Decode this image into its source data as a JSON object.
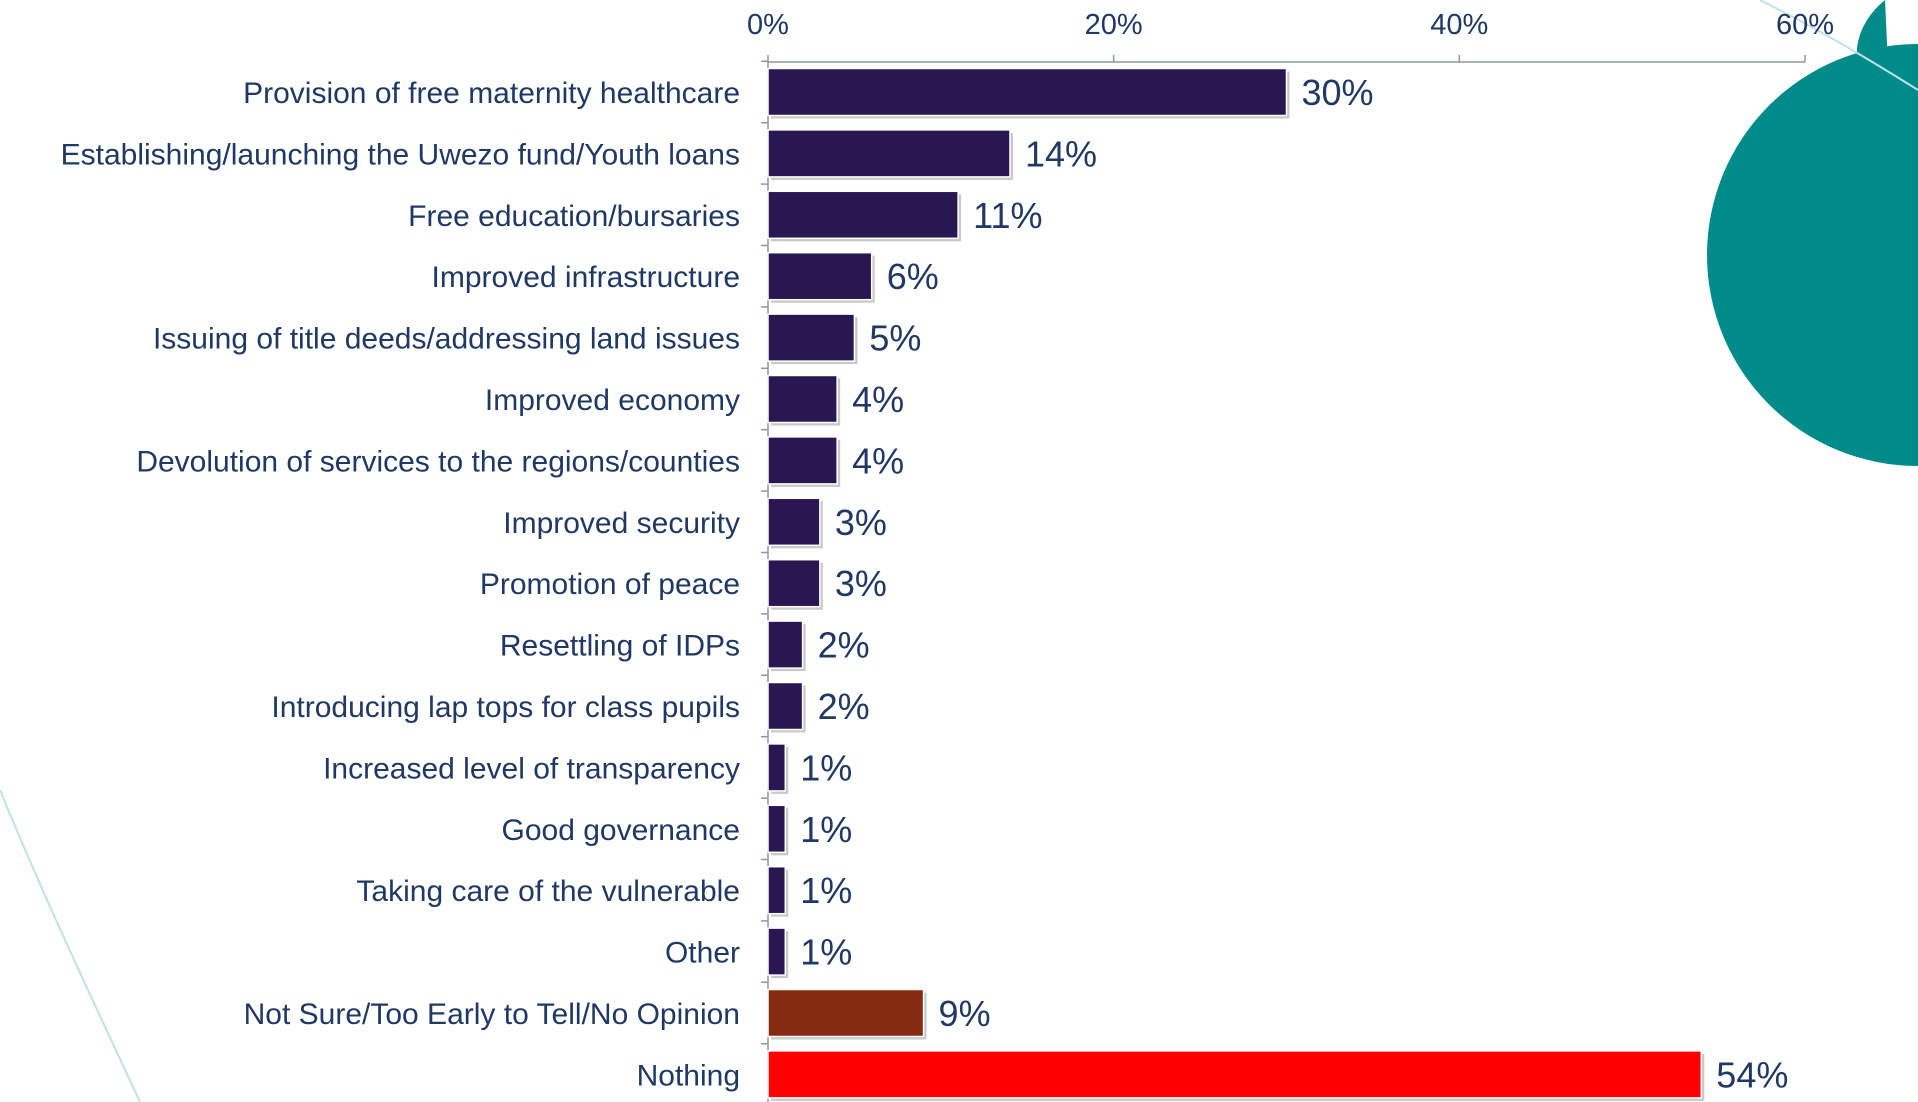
{
  "chart_data": {
    "type": "bar",
    "orientation": "horizontal",
    "categories": [
      "Provision of free maternity healthcare",
      "Establishing/launching the Uwezo fund/Youth loans",
      "Free education/bursaries",
      "Improved infrastructure",
      "Issuing of title deeds/addressing land issues",
      "Improved economy",
      "Devolution of services to the regions/counties",
      "Improved security",
      "Promotion of peace",
      "Resettling of IDPs",
      "Introducing lap tops for class pupils",
      "Increased level of transparency",
      "Good governance",
      "Taking care of the vulnerable",
      "Other",
      "Not Sure/Too Early to Tell/No Opinion",
      "Nothing"
    ],
    "values": [
      30,
      14,
      11,
      6,
      5,
      4,
      4,
      3,
      3,
      2,
      2,
      1,
      1,
      1,
      1,
      9,
      54
    ],
    "value_labels": [
      "30%",
      "14%",
      "11%",
      "6%",
      "5%",
      "4%",
      "4%",
      "3%",
      "3%",
      "2%",
      "2%",
      "1%",
      "1%",
      "1%",
      "1%",
      "9%",
      "54%"
    ],
    "bar_colors": [
      "#2a1650",
      "#2a1650",
      "#2a1650",
      "#2a1650",
      "#2a1650",
      "#2a1650",
      "#2a1650",
      "#2a1650",
      "#2a1650",
      "#2a1650",
      "#2a1650",
      "#2a1650",
      "#2a1650",
      "#2a1650",
      "#2a1650",
      "#852b0f",
      "#ff0000"
    ],
    "x_ticks": [
      "0%",
      "20%",
      "40%",
      "60%"
    ],
    "x_tick_values": [
      0,
      20,
      40,
      60
    ],
    "xlim": [
      0,
      60
    ],
    "x_axis_position": "top",
    "title": "",
    "xlabel": "",
    "ylabel": "",
    "grid": false,
    "legend": "none",
    "colors": {
      "label_text": "#1f3864",
      "axis": "#8c96a8",
      "accent_teal": "#008b8b",
      "decor_line": "#bfe3e3"
    }
  }
}
